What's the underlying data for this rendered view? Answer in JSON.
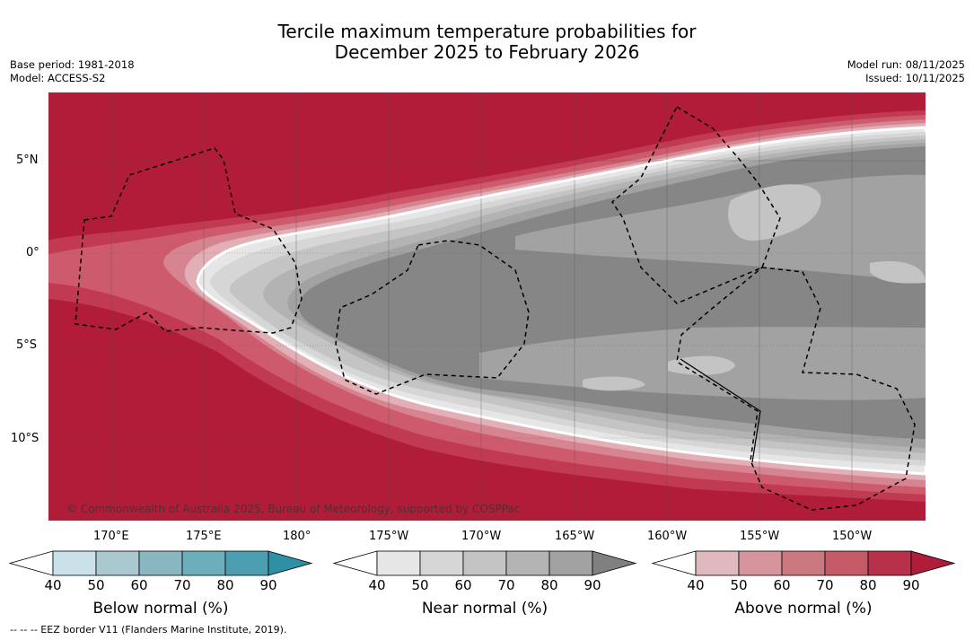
{
  "title": {
    "line1": "Tercile maximum temperature probabilities for",
    "line2": "December 2025 to February 2026"
  },
  "meta_left": {
    "base_period": "Base period: 1981-2018",
    "model": "Model: ACCESS-S2"
  },
  "meta_right": {
    "model_run": "Model run: 08/11/2025",
    "issued": "Issued: 10/11/2025"
  },
  "lat_labels": [
    "5°N",
    "0°",
    "5°S",
    "10°S"
  ],
  "lon_labels": [
    "170°E",
    "175°E",
    "180°",
    "175°W",
    "170°W",
    "165°W",
    "160°W",
    "155°W",
    "150°W"
  ],
  "copyright": "© Commonwealth of Australia 2025, Bureau of Meteorology, supported by COSPPac",
  "colorbars": [
    {
      "label": "Below normal (%)",
      "ticks": [
        "40",
        "50",
        "60",
        "70",
        "80",
        "90"
      ],
      "colors": [
        "#c9e1e8",
        "#a9c8cf",
        "#89b7c1",
        "#6daebb",
        "#4c9fb1",
        "#2e8fa5"
      ]
    },
    {
      "label": "Near normal (%)",
      "ticks": [
        "40",
        "50",
        "60",
        "70",
        "80",
        "90"
      ],
      "colors": [
        "#e6e6e6",
        "#d6d6d6",
        "#c4c4c4",
        "#b4b4b4",
        "#a2a2a2",
        "#868686"
      ]
    },
    {
      "label": "Above normal (%)",
      "ticks": [
        "40",
        "50",
        "60",
        "70",
        "80",
        "90"
      ],
      "colors": [
        "#e0b9bf",
        "#d6959c",
        "#cc7880",
        "#c45a65",
        "#b8314a",
        "#b01d38"
      ]
    }
  ],
  "footer": "--  --  -- EEZ border V11 (Flanders Marine Institute, 2019).",
  "colors": {
    "above_max": "#b11d38",
    "near_max": "#868686"
  }
}
